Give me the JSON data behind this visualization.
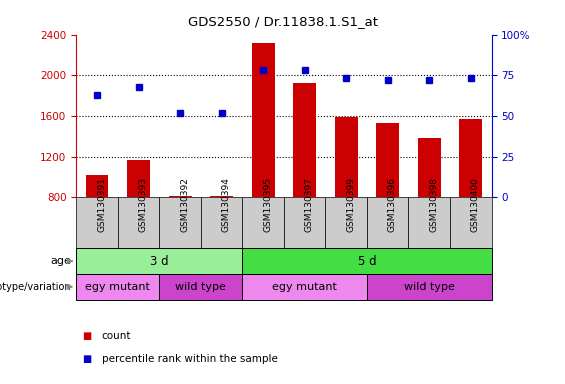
{
  "title": "GDS2550 / Dr.11838.1.S1_at",
  "samples": [
    "GSM130391",
    "GSM130393",
    "GSM130392",
    "GSM130394",
    "GSM130395",
    "GSM130397",
    "GSM130399",
    "GSM130396",
    "GSM130398",
    "GSM130400"
  ],
  "counts": [
    1020,
    1170,
    810,
    810,
    2320,
    1920,
    1590,
    1530,
    1380,
    1570
  ],
  "percentiles": [
    63,
    68,
    52,
    52,
    78,
    78,
    73,
    72,
    72,
    73
  ],
  "bar_color": "#cc0000",
  "dot_color": "#0000cc",
  "ylim_left": [
    800,
    2400
  ],
  "ylim_right": [
    0,
    100
  ],
  "yticks_left": [
    800,
    1200,
    1600,
    2000,
    2400
  ],
  "yticks_right": [
    0,
    25,
    50,
    75,
    100
  ],
  "ytick_right_labels": [
    "0",
    "25",
    "50",
    "75",
    "100%"
  ],
  "age_labels": [
    {
      "text": "3 d",
      "start": 0,
      "end": 4,
      "color": "#99ee99"
    },
    {
      "text": "5 d",
      "start": 4,
      "end": 10,
      "color": "#44dd44"
    }
  ],
  "genotype_labels": [
    {
      "text": "egy mutant",
      "start": 0,
      "end": 2,
      "color": "#ee88ee"
    },
    {
      "text": "wild type",
      "start": 2,
      "end": 4,
      "color": "#cc44cc"
    },
    {
      "text": "egy mutant",
      "start": 4,
      "end": 7,
      "color": "#ee88ee"
    },
    {
      "text": "wild type",
      "start": 7,
      "end": 10,
      "color": "#cc44cc"
    }
  ],
  "left_axis_color": "#cc0000",
  "right_axis_color": "#0000cc",
  "tick_bg_color": "#cccccc",
  "legend_items": [
    {
      "color": "#cc0000",
      "label": "count"
    },
    {
      "color": "#0000cc",
      "label": "percentile rank within the sample"
    }
  ]
}
